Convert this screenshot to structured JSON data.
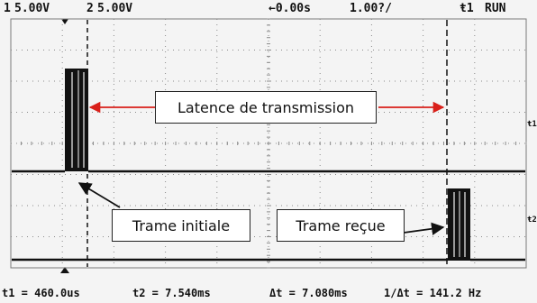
{
  "header": {
    "ch1_number": "1",
    "ch1_scale": "5.00V",
    "ch2_number": "2",
    "ch2_scale": "5.00V",
    "time_offset": "←0.00s",
    "time_base": "1.00?/",
    "trigger": "ŧ1",
    "run_state": "RUN"
  },
  "annotations": {
    "latency": "Latence de transmission",
    "initial_frame": "Trame initiale",
    "received_frame": "Trame reçue"
  },
  "footer": {
    "t1": "t1 = 460.0us",
    "t2": "t2 = 7.540ms",
    "dt": "Δt = 7.080ms",
    "inv_dt": "1/Δt = 141.2 Hz"
  },
  "colors": {
    "trace": "#111111",
    "grid": "#8a8a8a",
    "arrow": "#d9201a",
    "background": "#f4f4f4"
  }
}
